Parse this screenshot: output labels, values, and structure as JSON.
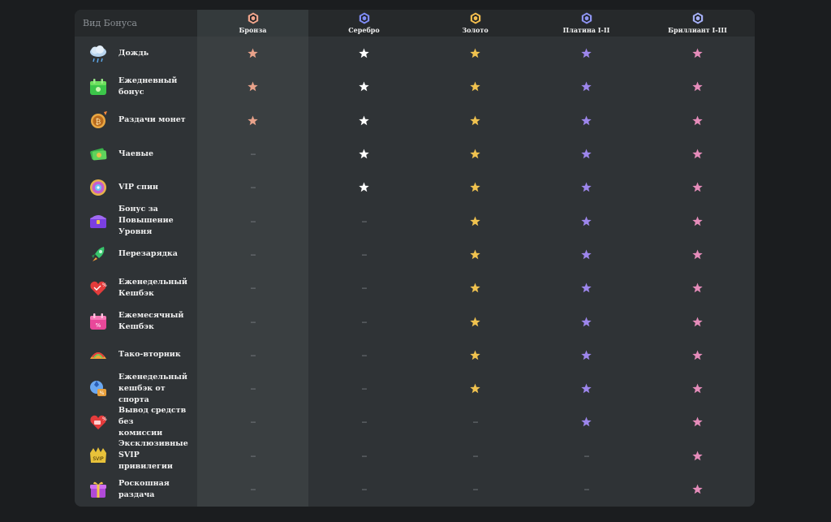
{
  "header": {
    "bonus_type_label": "Вид Бонуса",
    "tiers": [
      {
        "name": "Бронза",
        "color": "#f0a58c"
      },
      {
        "name": "Серебро",
        "color": "#7f8cf5"
      },
      {
        "name": "Золото",
        "color": "#f2bd4e"
      },
      {
        "name": "Платина I-II",
        "color": "#8e94f0"
      },
      {
        "name": "Бриллиант I-III",
        "color": "#a6b0f8"
      }
    ]
  },
  "colors": {
    "bronze_star": "#e8a28a",
    "silver_star": "#ffffff",
    "gold_star": "#f0c24f",
    "platinum_star": "#9d86ec",
    "diamond_star": "#e58cba",
    "dash": "#7c8186"
  },
  "dash_text": "--",
  "rows": [
    {
      "label": "Дождь",
      "icon": "rain-cloud-icon",
      "tiers": [
        true,
        true,
        true,
        true,
        true
      ]
    },
    {
      "label": "Ежедневный бонус",
      "icon": "daily-bonus-icon",
      "tiers": [
        true,
        true,
        true,
        true,
        true
      ]
    },
    {
      "label": "Раздачи монет",
      "icon": "coin-drop-icon",
      "tiers": [
        true,
        true,
        true,
        true,
        true
      ]
    },
    {
      "label": "Чаевые",
      "icon": "cash-tip-icon",
      "tiers": [
        false,
        true,
        true,
        true,
        true
      ]
    },
    {
      "label": "VIP спин",
      "icon": "vip-spin-icon",
      "tiers": [
        false,
        true,
        true,
        true,
        true
      ]
    },
    {
      "label": "Бонус за\nПовышение\nУровня",
      "icon": "level-up-chest-icon",
      "tiers": [
        false,
        false,
        true,
        true,
        true
      ]
    },
    {
      "label": "Перезарядка",
      "icon": "recharge-rocket-icon",
      "tiers": [
        false,
        false,
        true,
        true,
        true
      ]
    },
    {
      "label": "Еженедельный\nКешбэк",
      "icon": "weekly-cashback-icon",
      "tiers": [
        false,
        false,
        true,
        true,
        true
      ]
    },
    {
      "label": "Ежемесячный\nКешбэк",
      "icon": "monthly-cashback-icon",
      "tiers": [
        false,
        false,
        true,
        true,
        true
      ]
    },
    {
      "label": "Тако-вторник",
      "icon": "taco-icon",
      "tiers": [
        false,
        false,
        true,
        true,
        true
      ]
    },
    {
      "label": "Еженедельный\nкешбэк от спорта",
      "icon": "sports-cashback-icon",
      "tiers": [
        false,
        false,
        true,
        true,
        true
      ]
    },
    {
      "label": "Вывод средств без\nкомиссии",
      "icon": "free-withdrawal-icon",
      "tiers": [
        false,
        false,
        false,
        true,
        true
      ]
    },
    {
      "label": "Эксклюзивные\nSVIP привилегии",
      "icon": "svip-crown-icon",
      "tiers": [
        false,
        false,
        false,
        false,
        true
      ]
    },
    {
      "label": "Роскошная\nраздача",
      "icon": "luxury-gift-icon",
      "tiers": [
        false,
        false,
        false,
        false,
        true
      ]
    }
  ]
}
